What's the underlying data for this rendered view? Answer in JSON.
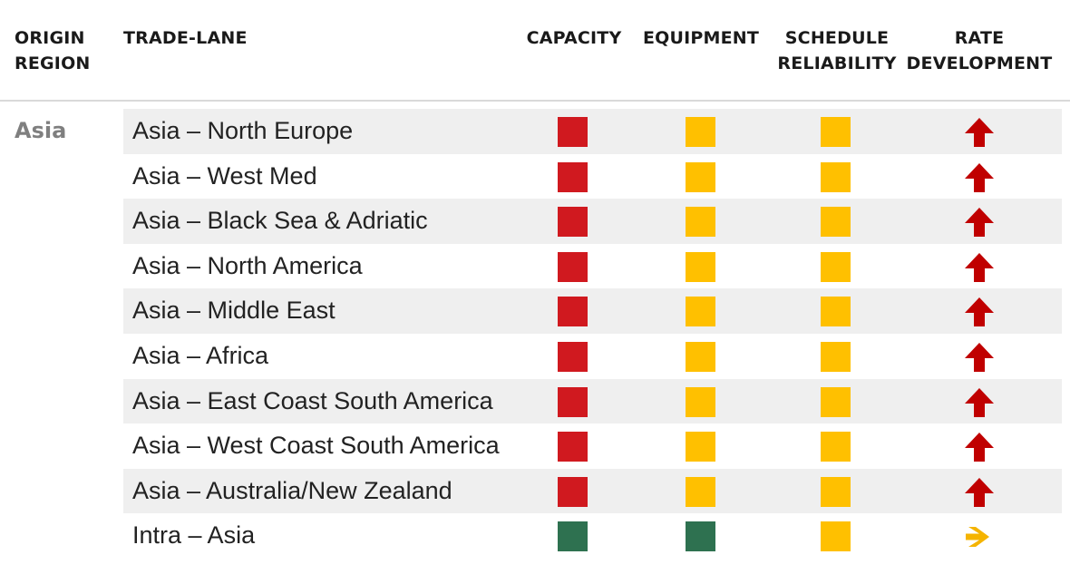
{
  "header": {
    "origin_region": [
      "ORIGIN",
      "REGION"
    ],
    "trade_lane": "TRADE-LANE",
    "capacity": "CAPACITY",
    "equipment": "EQUIPMENT",
    "schedule_reliability": [
      "SCHEDULE",
      "RELIABILITY"
    ],
    "rate_development": [
      "RATE",
      "DEVELOPMENT"
    ]
  },
  "region": "Asia",
  "colors": {
    "red": "#d0191f",
    "amber": "#ffc000",
    "green": "#2e7150",
    "arrow_up": "#c00000",
    "arrow_right": "#f5b400"
  },
  "rows": [
    {
      "lane": "Asia – North Europe",
      "capacity": "red",
      "equipment": "amber",
      "schedule": "amber",
      "rate": "up"
    },
    {
      "lane": "Asia – West Med",
      "capacity": "red",
      "equipment": "amber",
      "schedule": "amber",
      "rate": "up"
    },
    {
      "lane": "Asia – Black Sea & Adriatic",
      "capacity": "red",
      "equipment": "amber",
      "schedule": "amber",
      "rate": "up"
    },
    {
      "lane": "Asia – North America",
      "capacity": "red",
      "equipment": "amber",
      "schedule": "amber",
      "rate": "up"
    },
    {
      "lane": "Asia – Middle East",
      "capacity": "red",
      "equipment": "amber",
      "schedule": "amber",
      "rate": "up"
    },
    {
      "lane": "Asia – Africa",
      "capacity": "red",
      "equipment": "amber",
      "schedule": "amber",
      "rate": "up"
    },
    {
      "lane": "Asia – East Coast South America",
      "capacity": "red",
      "equipment": "amber",
      "schedule": "amber",
      "rate": "up"
    },
    {
      "lane": "Asia – West Coast South America",
      "capacity": "red",
      "equipment": "amber",
      "schedule": "amber",
      "rate": "up"
    },
    {
      "lane": "Asia – Australia/New Zealand",
      "capacity": "red",
      "equipment": "amber",
      "schedule": "amber",
      "rate": "up"
    },
    {
      "lane": "Intra – Asia",
      "capacity": "green",
      "equipment": "green",
      "schedule": "amber",
      "rate": "right"
    }
  ]
}
